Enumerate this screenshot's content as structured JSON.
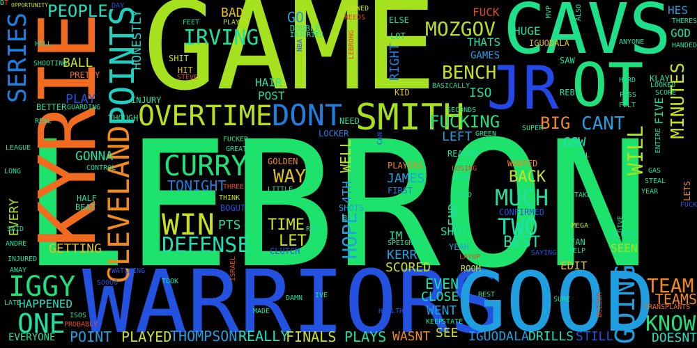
{
  "words": [
    {
      "text": "LEBRON",
      "color": "#1de36c"
    },
    {
      "text": "GAME",
      "color": "#a6e11f"
    },
    {
      "text": "WARRIORS",
      "color": "#2352e0"
    },
    {
      "text": "GOOD",
      "color": "#1f9fe0"
    },
    {
      "text": "KYRIE",
      "color": "#f06a1f"
    },
    {
      "text": "CAVS",
      "color": "#1fe08a"
    },
    {
      "text": "JR",
      "color": "#2348e6"
    },
    {
      "text": "OT",
      "color": "#1fe07a"
    },
    {
      "text": "SMITH",
      "color": "#a6e11f"
    },
    {
      "text": "OVERTIME",
      "color": "#b7e11f"
    },
    {
      "text": "DONT",
      "color": "#1f7fe0"
    },
    {
      "text": "POINTS",
      "color": "#1fd0c0"
    },
    {
      "text": "CLEVELAND",
      "color": "#f08a1f"
    },
    {
      "text": "SERIES",
      "color": "#1f7fe0"
    },
    {
      "text": "CURRY",
      "color": "#1fe07a"
    },
    {
      "text": "WIN",
      "color": "#c7e11f"
    },
    {
      "text": "DEFENSE",
      "color": "#1fe0b0"
    },
    {
      "text": "IGGY",
      "color": "#1fe07a"
    },
    {
      "text": "ONE",
      "color": "#1fe0a0"
    },
    {
      "text": "GOING",
      "color": "#1f9fe0"
    },
    {
      "text": "MUCH",
      "color": "#1fe0a0"
    },
    {
      "text": "TWO",
      "color": "#1fe0b0"
    },
    {
      "text": "MINUTES",
      "color": "#c7e11f"
    },
    {
      "text": "FUCKING",
      "color": "#1fe07a"
    },
    {
      "text": "MOZGOV",
      "color": "#b7e11f"
    },
    {
      "text": "BENCH",
      "color": "#c7e11f"
    },
    {
      "text": "IRVING",
      "color": "#1fe09a"
    },
    {
      "text": "PEOPLE",
      "color": "#1fe0c0"
    },
    {
      "text": "HONESTLY",
      "color": "#1fd0c0"
    },
    {
      "text": "WILL",
      "color": "#a6e11f"
    },
    {
      "text": "CANT",
      "color": "#1f9fe0"
    },
    {
      "text": "BIG",
      "color": "#f08a1f"
    },
    {
      "text": "KNOW",
      "color": "#1fe07a"
    },
    {
      "text": "TEAM",
      "color": "#f08a1f"
    },
    {
      "text": "TEAMS",
      "color": "#f08a1f"
    },
    {
      "text": "HOPE",
      "color": "#1fa0e0"
    },
    {
      "text": "WAY",
      "color": "#e0c01f"
    },
    {
      "text": "TIME",
      "color": "#c7e11f"
    },
    {
      "text": "LET",
      "color": "#c7e11f"
    },
    {
      "text": "BACK",
      "color": "#c7e11f"
    },
    {
      "text": "BEST",
      "color": "#1fe0b0"
    },
    {
      "text": "PLAYS",
      "color": "#1fe0a0"
    },
    {
      "text": "REALLY",
      "color": "#1fe0c0"
    },
    {
      "text": "FINALS",
      "color": "#c7e11f"
    },
    {
      "text": "POINT",
      "color": "#1fa0e0"
    },
    {
      "text": "PLAYED",
      "color": "#c7e11f"
    },
    {
      "text": "THOMPSON",
      "color": "#1fa0e0"
    },
    {
      "text": "IGUODALA",
      "color": "#1fa0e0"
    },
    {
      "text": "DRILLS",
      "color": "#1fe0c0"
    },
    {
      "text": "STILL",
      "color": "#2352e0"
    },
    {
      "text": "DOESNT",
      "color": "#1fe0c0"
    },
    {
      "text": "EVEN",
      "color": "#1fe0a0"
    },
    {
      "text": "CLOSE",
      "color": "#1fe0b0"
    },
    {
      "text": "WENT",
      "color": "#1fa0e0"
    },
    {
      "text": "SEE",
      "color": "#c7e11f"
    },
    {
      "text": "WASNT",
      "color": "#f08a1f"
    },
    {
      "text": "JAMES",
      "color": "#1fa0e0"
    },
    {
      "text": "KERR",
      "color": "#1fa0e0"
    },
    {
      "text": "SCORED",
      "color": "#c7e11f"
    },
    {
      "text": "TONIGHT",
      "color": "#1f7fe0"
    },
    {
      "text": "GETTING",
      "color": "#e0c01f"
    },
    {
      "text": "PTS",
      "color": "#1fe0a0"
    },
    {
      "text": "BALL",
      "color": "#c7e11f"
    },
    {
      "text": "PLAY",
      "color": "#2352e0"
    },
    {
      "text": "GONNA",
      "color": "#1fe0a0"
    },
    {
      "text": "HAPPENED",
      "color": "#1fe0c0"
    },
    {
      "text": "EVERYONE",
      "color": "#1fe0a0"
    },
    {
      "text": "EVERY",
      "color": "#a6e11f"
    },
    {
      "text": "HUGE",
      "color": "#1fe0a0"
    },
    {
      "text": "THATS",
      "color": "#1fe0a0"
    },
    {
      "text": "GAMES",
      "color": "#1fa0e0"
    },
    {
      "text": "ISO",
      "color": "#1fe0a0"
    },
    {
      "text": "GO",
      "color": "#1f9fe0"
    },
    {
      "text": "BAD",
      "color": "#e0c01f"
    },
    {
      "text": "RIGHT",
      "color": "#1f7fe0"
    },
    {
      "text": "HAIR",
      "color": "#1fe0a0"
    },
    {
      "text": "POST",
      "color": "#1fe0a0"
    },
    {
      "text": "LEFT",
      "color": "#1fa0e0"
    },
    {
      "text": "END",
      "color": "#1fe0a0"
    },
    {
      "text": "SHOT",
      "color": "#1fe0a0"
    },
    {
      "text": "WELL",
      "color": "#c7e11f"
    },
    {
      "text": "4TH",
      "color": "#1fa0e0"
    },
    {
      "text": "GSW",
      "color": "#1fe0c0"
    },
    {
      "text": "GOD",
      "color": "#1fe0a0"
    },
    {
      "text": "HES",
      "color": "#1f9fe0"
    },
    {
      "text": "FIVE",
      "color": "#1fe0a0"
    },
    {
      "text": "EDIT",
      "color": "#e0c01f"
    },
    {
      "text": "SEEN",
      "color": "#a6e11f"
    },
    {
      "text": "FUCK",
      "color": "#e04a1f"
    },
    {
      "text": "IM",
      "color": "#1fe0a0"
    },
    {
      "text": "LOCKER",
      "color": "#1f7fe0"
    },
    {
      "text": "NEED",
      "color": "#1fe0a0"
    },
    {
      "text": "GOLDEN",
      "color": "#f08a1f"
    },
    {
      "text": "LETS",
      "color": "#f08a1f"
    },
    {
      "text": "WANTED",
      "color": "#f08a1f"
    },
    {
      "text": "CONFIRMED",
      "color": "#2352e0"
    },
    {
      "text": "INJURY",
      "color": "#1fe0a0"
    },
    {
      "text": "BETTER",
      "color": "#1fe0a0"
    },
    {
      "text": "KLAY",
      "color": "#1fe0a0"
    },
    {
      "text": "YEAH",
      "color": "#1f9fe0"
    },
    {
      "text": "BLOCK",
      "color": "#1fe0a0"
    },
    {
      "text": "ROOM",
      "color": "#c7e11f"
    },
    {
      "text": "BOGUT",
      "color": "#2352e0"
    },
    {
      "text": "SHOTS",
      "color": "#1fa0e0"
    },
    {
      "text": "CLUTCH",
      "color": "#2352e0"
    },
    {
      "text": "THOUGH",
      "color": "#1fe0a0"
    },
    {
      "text": "TRANSPLANTS",
      "color": "#f06a1f"
    },
    {
      "text": "OPPORTUNITY",
      "color": "#c7e11f"
    },
    {
      "text": "HALF",
      "color": "#1fe0a0"
    },
    {
      "text": "BEAT",
      "color": "#1fe0a0"
    },
    {
      "text": "PLAYERS",
      "color": "#f08a1f"
    },
    {
      "text": "FIRST",
      "color": "#1f7fe0"
    },
    {
      "text": "PRETTY",
      "color": "#f06a1f"
    },
    {
      "text": "GUARDING",
      "color": "#1fe0a0"
    },
    {
      "text": "SHIT",
      "color": "#c7e11f"
    },
    {
      "text": "HIT",
      "color": "#e0c01f"
    },
    {
      "text": "STEVE",
      "color": "#e04a1f"
    },
    {
      "text": "FEET",
      "color": "#1fe0a0"
    },
    {
      "text": "PLAYER",
      "color": "#c7e11f"
    },
    {
      "text": "DOUBLE",
      "color": "#1fe0a0"
    },
    {
      "text": "INJURIES",
      "color": "#1fe0a0"
    },
    {
      "text": "SHOWED",
      "color": "#c7e11f"
    },
    {
      "text": "NEEDS",
      "color": "#e04a1f"
    },
    {
      "text": "ELSE",
      "color": "#1fe0a0"
    },
    {
      "text": "LOT",
      "color": "#1fe0a0"
    },
    {
      "text": "IGUODALA",
      "color": "#e0c01f"
    },
    {
      "text": "SAW",
      "color": "#1fe0a0"
    },
    {
      "text": "REB",
      "color": "#1fe0a0"
    },
    {
      "text": "KID",
      "color": "#e0c01f"
    },
    {
      "text": "BASICALLY",
      "color": "#1fe0a0"
    },
    {
      "text": "SECONDS",
      "color": "#1fe0a0"
    },
    {
      "text": "GREEN",
      "color": "#1fe0a0"
    },
    {
      "text": "SUPER",
      "color": "#1fe0a0"
    },
    {
      "text": "REASON",
      "color": "#1fe0a0"
    },
    {
      "text": "LOSING",
      "color": "#e04a1f"
    },
    {
      "text": "BLEW",
      "color": "#1fe0a0"
    },
    {
      "text": "LEAD",
      "color": "#1fe0a0"
    },
    {
      "text": "LAYUP",
      "color": "#e04a1f"
    },
    {
      "text": "FAN",
      "color": "#1fe0a0"
    },
    {
      "text": "HELP",
      "color": "#1fe0a0"
    },
    {
      "text": "MEGA",
      "color": "#c7e11f"
    },
    {
      "text": "GIVE",
      "color": "#1fe0a0"
    },
    {
      "text": "TAKE",
      "color": "#1fe0a0"
    },
    {
      "text": "PASS",
      "color": "#1fe0a0"
    },
    {
      "text": "FELT",
      "color": "#1fe0a0"
    },
    {
      "text": "SCORE",
      "color": "#1fe0a0"
    },
    {
      "text": "LOOKED",
      "color": "#1fe0a0"
    },
    {
      "text": "HANDED",
      "color": "#1fe0a0"
    },
    {
      "text": "THERES",
      "color": "#1fe0a0"
    },
    {
      "text": "HARD",
      "color": "#1fe0a0"
    },
    {
      "text": "ANYONE",
      "color": "#1fe0a0"
    },
    {
      "text": "GAS",
      "color": "#1fe0a0"
    },
    {
      "text": "STEAL",
      "color": "#1fe0a0"
    },
    {
      "text": "YEAR",
      "color": "#1fe0a0"
    },
    {
      "text": "REST",
      "color": "#1fe0a0"
    },
    {
      "text": "SURE",
      "color": "#1fe0a0"
    },
    {
      "text": "BUZZER",
      "color": "#e04a1f"
    },
    {
      "text": "MADE",
      "color": "#1fe0a0"
    },
    {
      "text": "KEEP",
      "color": "#1fe0a0"
    },
    {
      "text": "STATE",
      "color": "#1fe0a0"
    },
    {
      "text": "ISOS",
      "color": "#1fe0a0"
    },
    {
      "text": "PROBABLY",
      "color": "#e04a1f"
    },
    {
      "text": "LATE",
      "color": "#1fe0a0"
    },
    {
      "text": "AWAY",
      "color": "#1fe0a0"
    },
    {
      "text": "INJURED",
      "color": "#1fe0a0"
    },
    {
      "text": "ANDRE",
      "color": "#1fe0a0"
    },
    {
      "text": "SAID",
      "color": "#1fe0a0"
    },
    {
      "text": "LONG",
      "color": "#1fe0a0"
    },
    {
      "text": "LEAGUE",
      "color": "#1fe0a0"
    },
    {
      "text": "REAL",
      "color": "#1fe0a0"
    },
    {
      "text": "HELL",
      "color": "#1fe0a0"
    },
    {
      "text": "SHOOTING",
      "color": "#1fe0a0"
    },
    {
      "text": "FUCKER",
      "color": "#1fe0a0"
    },
    {
      "text": "GREAT",
      "color": "#1fe0a0"
    },
    {
      "text": "CONTROL",
      "color": "#1fe0a0"
    },
    {
      "text": "THREE",
      "color": "#e04a1f"
    },
    {
      "text": "THINK",
      "color": "#c7e11f"
    },
    {
      "text": "LITTLE",
      "color": "#1fe0a0"
    },
    {
      "text": "SPEIGHTS",
      "color": "#1fe0a0"
    },
    {
      "text": "WATCHING",
      "color": "#2352e0"
    },
    {
      "text": "ISRAEL",
      "color": "#e04a1f"
    },
    {
      "text": "BEAST",
      "color": "#1fe0a0"
    },
    {
      "text": "DAMN",
      "color": "#1fe0a0"
    },
    {
      "text": "HEALTHY",
      "color": "#2352e0"
    },
    {
      "text": "SOOOO",
      "color": "#2352e0"
    },
    {
      "text": "TOOK",
      "color": "#1fe0a0"
    },
    {
      "text": "DAY",
      "color": "#2352e0"
    },
    {
      "text": "NBA",
      "color": "#2352e0"
    },
    {
      "text": "MVP",
      "color": "#1fe0a0"
    },
    {
      "text": "ALSO",
      "color": "#1fe0a0"
    },
    {
      "text": "ENTIRE",
      "color": "#1fe0a0"
    },
    {
      "text": "LEBRONG",
      "color": "#e04a1f"
    },
    {
      "text": "CAN",
      "color": "#2352e0"
    },
    {
      "text": "FUCK",
      "color": "#2352e0"
    },
    {
      "text": "SAYING",
      "color": "#2352e0"
    },
    {
      "text": "COL",
      "color": "#1fe0a0"
    },
    {
      "text": "IVE",
      "color": "#1fe0a0"
    },
    {
      "text": "RUN",
      "color": "#1fe0a0"
    },
    {
      "text": "GT",
      "color": "#e04a1f"
    },
    {
      "text": "D",
      "color": "#1fe0a0"
    }
  ]
}
